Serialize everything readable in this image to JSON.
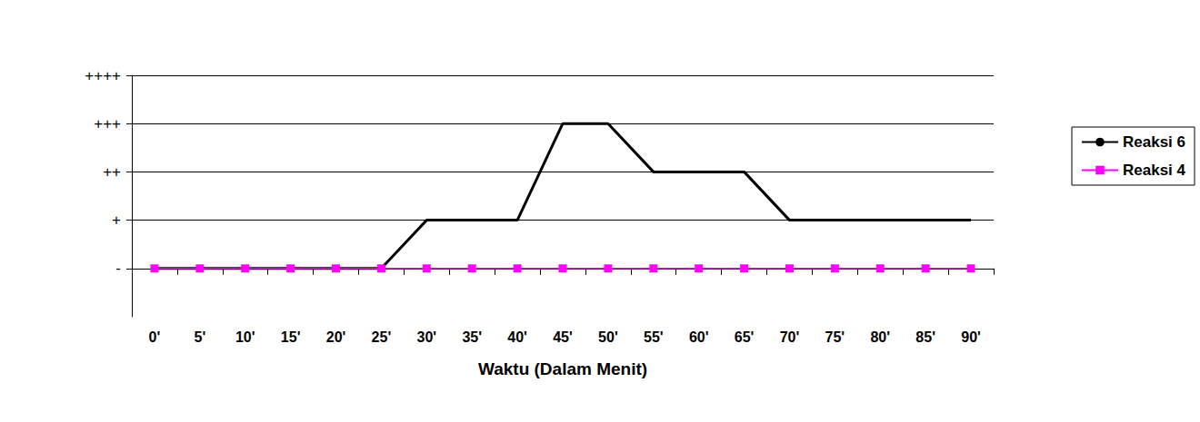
{
  "chart_data": {
    "type": "line",
    "xlabel": "Waktu (Dalam Menit)",
    "categories": [
      "0'",
      "5'",
      "10'",
      "15'",
      "20'",
      "25'",
      "30'",
      "35'",
      "40'",
      "45'",
      "50'",
      "55'",
      "60'",
      "65'",
      "70'",
      "75'",
      "80'",
      "85'",
      "90'"
    ],
    "series": [
      {
        "name": "Reaksi 6",
        "color": "#000000",
        "marker": "none",
        "values": [
          0,
          0,
          0,
          0,
          0,
          0,
          1,
          1,
          1,
          3,
          3,
          2,
          2,
          2,
          1,
          1,
          1,
          1,
          1
        ]
      },
      {
        "name": "Reaksi 4",
        "color": "#ff00ff",
        "marker": "square",
        "values": [
          0,
          0,
          0,
          0,
          0,
          0,
          0,
          0,
          0,
          0,
          0,
          0,
          0,
          0,
          0,
          0,
          0,
          0,
          0
        ]
      }
    ],
    "ylim": [
      -1,
      4
    ],
    "yticks": [
      {
        "value": 0,
        "label": "-"
      },
      {
        "value": 1,
        "label": "+"
      },
      {
        "value": 2,
        "label": "++"
      },
      {
        "value": 3,
        "label": "+++"
      },
      {
        "value": 4,
        "label": "++++"
      }
    ],
    "grid": true,
    "legend": "right"
  }
}
